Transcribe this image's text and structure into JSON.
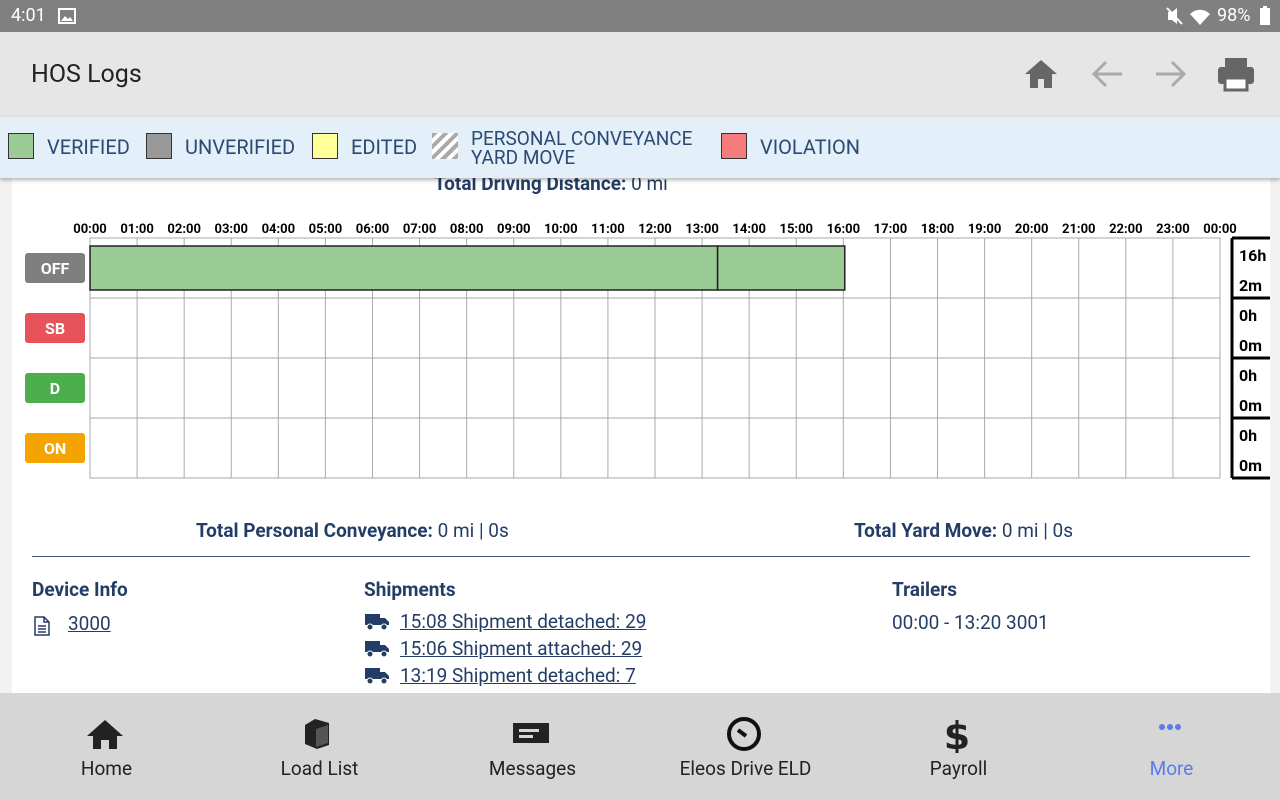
{
  "status_bar": {
    "time": "4:01",
    "battery": "98%"
  },
  "header": {
    "title": "HOS Logs"
  },
  "legend": [
    {
      "label": "VERIFIED",
      "color": "#9ccc96"
    },
    {
      "label": "UNVERIFIED",
      "color": "#999999"
    },
    {
      "label": "EDITED",
      "color": "#ffff99"
    },
    {
      "label": "PERSONAL CONVEYANCE",
      "label2": "YARD MOVE",
      "color": "#aaaaaa"
    },
    {
      "label": "VIOLATION",
      "color": "#f47c7c"
    }
  ],
  "total_driving": {
    "label": "Total Driving Distance:",
    "value": "0 mi"
  },
  "log_graph": {
    "xlim": [
      0,
      24
    ],
    "xticks": [
      {
        "value": 0,
        "label": "00:00"
      },
      {
        "value": 1,
        "label": "01:00"
      },
      {
        "value": 2,
        "label": "02:00"
      },
      {
        "value": 3,
        "label": "03:00"
      },
      {
        "value": 4,
        "label": "04:00"
      },
      {
        "value": 5,
        "label": "05:00"
      },
      {
        "value": 6,
        "label": "06:00"
      },
      {
        "value": 7,
        "label": "07:00"
      },
      {
        "value": 8,
        "label": "08:00"
      },
      {
        "value": 9,
        "label": "09:00"
      },
      {
        "value": 10,
        "label": "10:00"
      },
      {
        "value": 11,
        "label": "11:00"
      },
      {
        "value": 12,
        "label": "12:00"
      },
      {
        "value": 13,
        "label": "13:00"
      },
      {
        "value": 14,
        "label": "14:00"
      },
      {
        "value": 15,
        "label": "15:00"
      },
      {
        "value": 16,
        "label": "16:00"
      },
      {
        "value": 17,
        "label": "17:00"
      },
      {
        "value": 18,
        "label": "18:00"
      },
      {
        "value": 19,
        "label": "19:00"
      },
      {
        "value": 20,
        "label": "20:00"
      },
      {
        "value": 21,
        "label": "21:00"
      },
      {
        "value": 22,
        "label": "22:00"
      },
      {
        "value": 23,
        "label": "23:00"
      },
      {
        "value": 24,
        "label": "00:00"
      }
    ],
    "rows": [
      {
        "status": "OFF",
        "color": "#7f7f7f",
        "total_hours": "16h",
        "total_minutes": "2m",
        "segments": [
          {
            "start": 0,
            "end": 13.33,
            "color": "#9ccc96"
          },
          {
            "start": 13.33,
            "end": 16.03,
            "color": "#9ccc96"
          }
        ]
      },
      {
        "status": "SB",
        "color": "#e8525a",
        "total_hours": "0h",
        "total_minutes": "0m",
        "segments": []
      },
      {
        "status": "D",
        "color": "#4cae4c",
        "total_hours": "0h",
        "total_minutes": "0m",
        "segments": []
      },
      {
        "status": "ON",
        "color": "#f5a300",
        "total_hours": "0h",
        "total_minutes": "0m",
        "segments": []
      }
    ]
  },
  "totals": {
    "pc_label": "Total Personal Conveyance:",
    "pc_value": "0 mi | 0s",
    "ym_label": "Total Yard Move:",
    "ym_value": "0 mi | 0s"
  },
  "device_info": {
    "title": "Device Info",
    "value": "3000"
  },
  "shipments": {
    "title": "Shipments",
    "items": [
      "15:08 Shipment detached: 29",
      "15:06 Shipment attached: 29",
      "13:19 Shipment detached: 7"
    ]
  },
  "trailers": {
    "title": "Trailers",
    "items": [
      "00:00 - 13:20 3001"
    ]
  },
  "nav": [
    {
      "label": "Home"
    },
    {
      "label": "Load List"
    },
    {
      "label": "Messages"
    },
    {
      "label": "Eleos Drive ELD"
    },
    {
      "label": "Payroll"
    },
    {
      "label": "More"
    }
  ]
}
